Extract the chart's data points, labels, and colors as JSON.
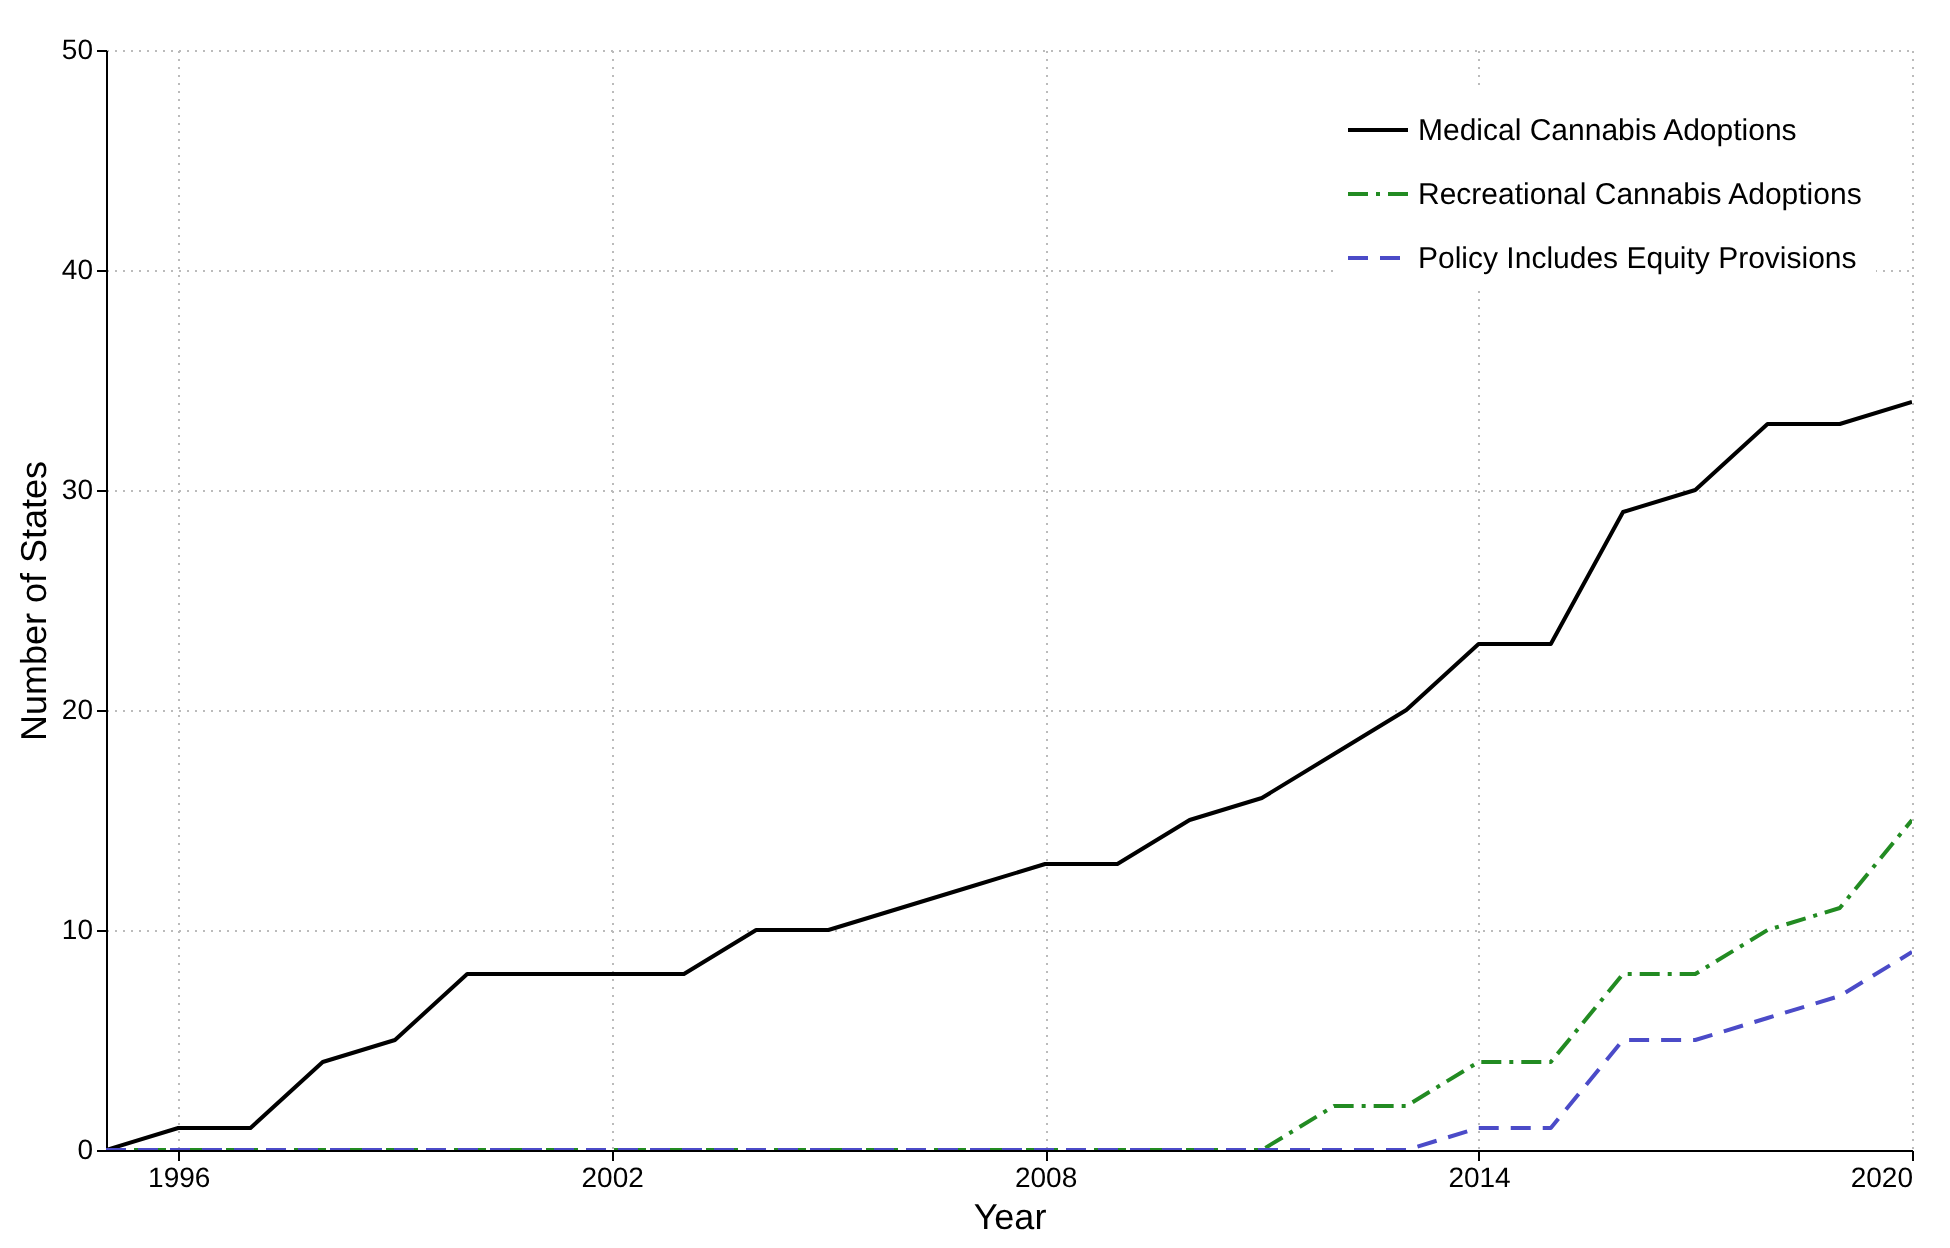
{
  "chart_data": {
    "type": "line",
    "xlabel": "Year",
    "ylabel": "Number of States",
    "x": [
      1995,
      1996,
      1997,
      1998,
      1999,
      2000,
      2001,
      2002,
      2003,
      2004,
      2005,
      2006,
      2007,
      2008,
      2009,
      2010,
      2011,
      2012,
      2013,
      2014,
      2015,
      2016,
      2017,
      2018,
      2019,
      2020
    ],
    "series": [
      {
        "name": "Medical Cannabis Adoptions",
        "color": "#000000",
        "line_style": "solid",
        "values": [
          0,
          1,
          1,
          4,
          5,
          8,
          8,
          8,
          8,
          10,
          10,
          11,
          12,
          13,
          13,
          15,
          16,
          18,
          20,
          23,
          23,
          29,
          30,
          33,
          33,
          34
        ]
      },
      {
        "name": "Recreational Cannabis Adoptions",
        "color": "#228b22",
        "line_style": "dashdot",
        "values": [
          0,
          0,
          0,
          0,
          0,
          0,
          0,
          0,
          0,
          0,
          0,
          0,
          0,
          0,
          0,
          0,
          0,
          2,
          2,
          4,
          4,
          8,
          8,
          10,
          11,
          15
        ]
      },
      {
        "name": "Policy Includes Equity Provisions",
        "color": "#4b4bc8",
        "line_style": "dashed",
        "values": [
          0,
          0,
          0,
          0,
          0,
          0,
          0,
          0,
          0,
          0,
          0,
          0,
          0,
          0,
          0,
          0,
          0,
          0,
          0,
          1,
          1,
          5,
          5,
          6,
          7,
          9
        ]
      }
    ],
    "xlim": [
      1995,
      2020
    ],
    "xticks": [
      1996,
      2002,
      2008,
      2014,
      2020
    ],
    "ylim": [
      0,
      50
    ],
    "yticks": [
      0,
      10,
      20,
      30,
      40,
      50
    ],
    "grid": true,
    "legend": "top right"
  }
}
